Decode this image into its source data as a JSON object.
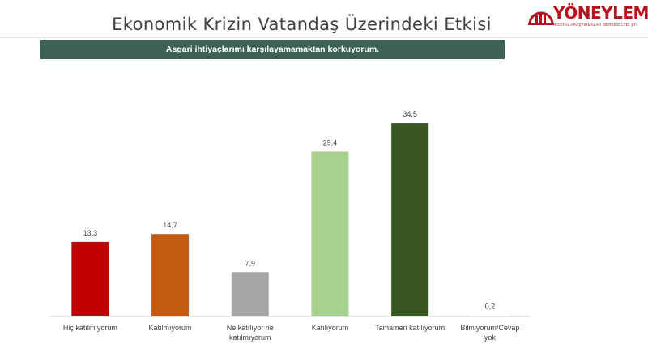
{
  "header": {
    "title": "Ekonomik Krizin Vatandaş Üzerindeki Etkisi",
    "question": "Asgari ihtiyaçlarımı karşılayamamaktan korkuyorum."
  },
  "logo": {
    "name": "YÖNEYLEM",
    "subtitle": "SOSYAL ARAŞTIRMALAR MERKEZİ LTD. ŞTİ.",
    "color": "#b5121b"
  },
  "chart_data": {
    "type": "bar",
    "categories": [
      [
        "Hiç katılmıyorum"
      ],
      [
        "Katılmıyorum"
      ],
      [
        "Ne katılıyor ne",
        "katılmıyorum"
      ],
      [
        "Katılıyorum"
      ],
      [
        "Tamamen katılıyorum"
      ],
      [
        "Bilmiyorum/Cevap",
        "yok"
      ]
    ],
    "values": [
      13.3,
      14.7,
      7.9,
      29.4,
      34.5,
      0.2
    ],
    "value_labels": [
      "13,3",
      "14,7",
      "7,9",
      "29,4",
      "34,5",
      "0,2"
    ],
    "colors": [
      "#c00000",
      "#c55a11",
      "#a5a5a5",
      "#a9d18e",
      "#375623",
      "#ffffff"
    ],
    "ylim": [
      0,
      40
    ],
    "grid": false,
    "legend": "none"
  }
}
